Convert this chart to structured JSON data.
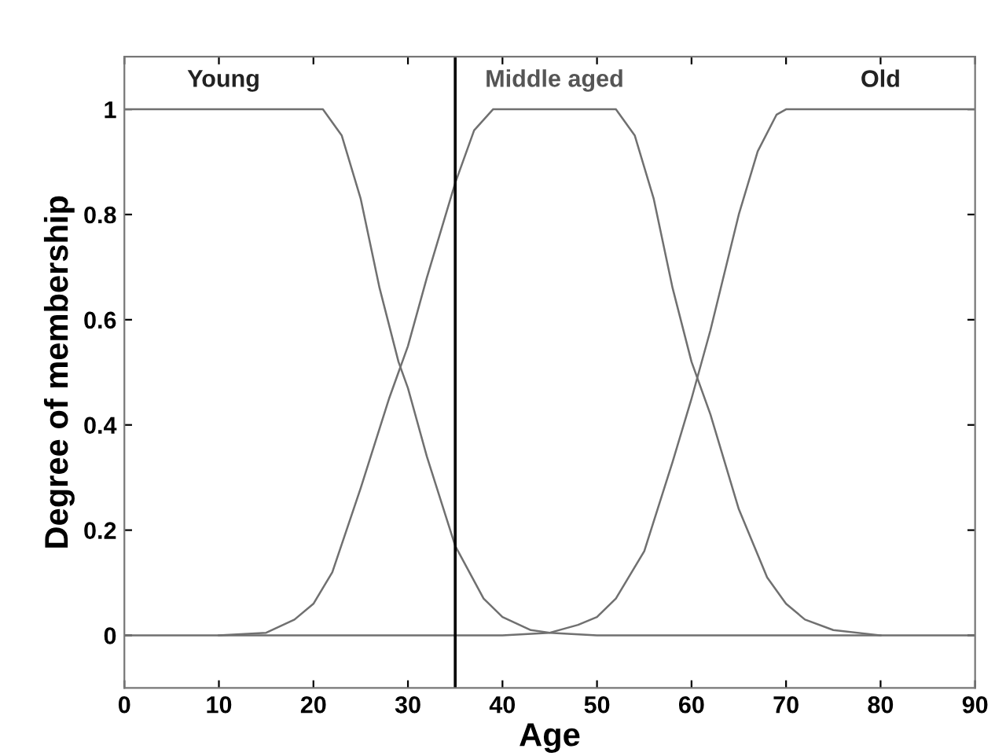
{
  "chart_data": {
    "type": "line",
    "xlabel": "Age",
    "ylabel": "Degree of membership",
    "series": [
      {
        "name": "Young",
        "color": "#707070",
        "x": [
          0,
          21,
          23,
          25,
          27,
          29,
          30,
          32,
          35,
          38,
          40,
          43,
          45,
          50,
          90
        ],
        "values": [
          1,
          1,
          0.95,
          0.83,
          0.66,
          0.52,
          0.47,
          0.34,
          0.17,
          0.07,
          0.035,
          0.01,
          0.005,
          0,
          0
        ]
      },
      {
        "name": "Middle aged",
        "color": "#707070",
        "x": [
          10,
          15,
          18,
          20,
          22,
          25,
          28,
          30,
          32,
          35,
          37,
          39,
          52,
          54,
          56,
          58,
          60,
          62,
          65,
          68,
          70,
          72,
          75,
          80
        ],
        "values": [
          0,
          0.005,
          0.03,
          0.06,
          0.12,
          0.28,
          0.45,
          0.55,
          0.68,
          0.86,
          0.96,
          1,
          1,
          0.95,
          0.83,
          0.66,
          0.52,
          0.42,
          0.24,
          0.11,
          0.06,
          0.03,
          0.01,
          0
        ]
      },
      {
        "name": "Old",
        "color": "#707070",
        "x": [
          0,
          40,
          45,
          48,
          50,
          52,
          55,
          58,
          60,
          62,
          65,
          67,
          69,
          70,
          90
        ],
        "values": [
          0,
          0,
          0.005,
          0.02,
          0.035,
          0.07,
          0.16,
          0.33,
          0.45,
          0.58,
          0.8,
          0.92,
          0.99,
          1,
          1
        ]
      }
    ],
    "ref_lines": [
      {
        "axis": "x",
        "value": 35,
        "color": "#000000"
      }
    ],
    "xlim": [
      0,
      90
    ],
    "xticks": [
      0,
      10,
      20,
      30,
      40,
      50,
      60,
      70,
      80,
      90
    ],
    "ylim": [
      -0.1,
      1.1
    ],
    "yticks": [
      0,
      0.2,
      0.4,
      0.6,
      0.8,
      1
    ],
    "grid": false,
    "legend": false,
    "marker": "none",
    "line_style": "solid"
  }
}
